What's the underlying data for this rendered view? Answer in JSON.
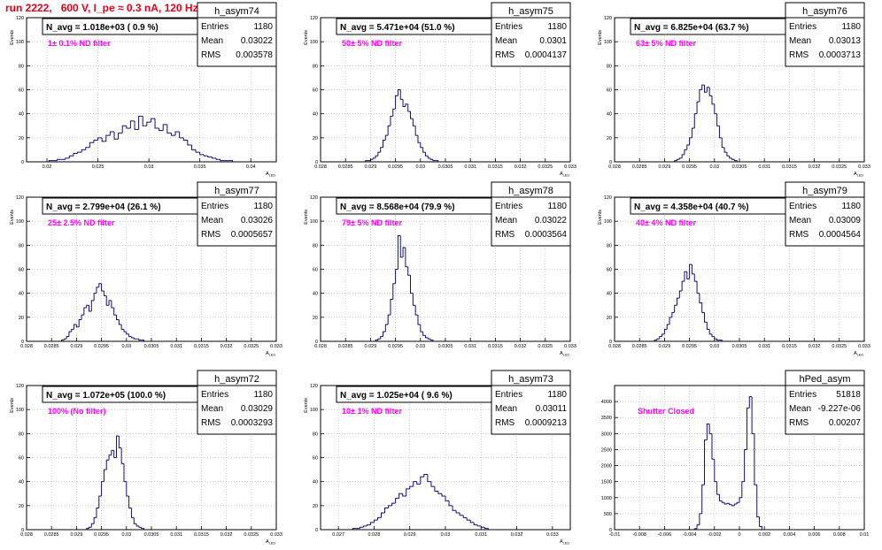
{
  "run_title": "run 2222,   600 V, I_pe ≈ 0.3 nA, 120 Hz",
  "colors": {
    "title": "#e8001a",
    "histogram": "#10107a",
    "annotation": "#ff00ff",
    "frame": "#000000",
    "grid": "#b0b0b0"
  },
  "chart_data": [
    {
      "type": "bar",
      "name": "h_asym74",
      "header": "N_avg = 1.018e+03 ( 0.9 %)",
      "annotation": "1± 0.1% ND filter",
      "stats": [
        [
          "Entries",
          "1180"
        ],
        [
          "Mean",
          "0.03022"
        ],
        [
          "RMS",
          "0.003578"
        ]
      ],
      "xlabel": "A_LED",
      "ylabel": "Events",
      "xlim": [
        0.018,
        0.0425
      ],
      "ylim": [
        0,
        120
      ],
      "xticks": [
        "0.02",
        "0.025",
        "0.03",
        "0.035",
        "0.04"
      ],
      "yticks": [
        "0",
        "20",
        "40",
        "60",
        "80",
        "100",
        "120"
      ],
      "grid": true,
      "legend": "top-right",
      "x_start": 0.0202,
      "bin_width": 0.0004,
      "values": [
        1,
        1,
        2,
        2,
        3,
        5,
        7,
        8,
        10,
        12,
        16,
        18,
        20,
        17,
        22,
        25,
        19,
        24,
        30,
        28,
        34,
        27,
        38,
        30,
        33,
        36,
        28,
        26,
        31,
        24,
        22,
        25,
        20,
        18,
        14,
        10,
        8,
        6,
        5,
        4,
        3,
        2,
        1,
        1,
        1
      ]
    },
    {
      "type": "bar",
      "name": "h_asym75",
      "header": "N_avg = 5.471e+04 (51.0 %)",
      "annotation": "50± 5% ND filter",
      "stats": [
        [
          "Entries",
          "1180"
        ],
        [
          "Mean",
          "0.0301"
        ],
        [
          "RMS",
          "0.0004137"
        ]
      ],
      "xlabel": "A_LED",
      "ylabel": "Events",
      "xlim": [
        0.028,
        0.033
      ],
      "ylim": [
        0,
        120
      ],
      "xticks": [
        "0.028",
        "0.0285",
        "0.029",
        "0.0295",
        "0.03",
        "0.0305",
        "0.031",
        "0.0315",
        "0.032",
        "0.0325",
        "0.033"
      ],
      "yticks": [
        "0",
        "20",
        "40",
        "60",
        "80",
        "100",
        "120"
      ],
      "grid": true,
      "legend": "top-right",
      "x_start": 0.0289,
      "bin_width": 5e-05,
      "values": [
        1,
        1,
        2,
        3,
        5,
        8,
        12,
        18,
        22,
        30,
        38,
        44,
        55,
        60,
        52,
        46,
        48,
        42,
        36,
        30,
        22,
        16,
        12,
        8,
        5,
        3,
        2,
        1,
        1
      ]
    },
    {
      "type": "bar",
      "name": "h_asym76",
      "header": "N_avg = 6.825e+04 (63.7 %)",
      "annotation": "63± 5% ND filter",
      "stats": [
        [
          "Entries",
          "1180"
        ],
        [
          "Mean",
          "0.03013"
        ],
        [
          "RMS",
          "0.0003713"
        ]
      ],
      "xlabel": "A_LED",
      "ylabel": "Events",
      "xlim": [
        0.028,
        0.033
      ],
      "ylim": [
        0,
        120
      ],
      "xticks": [
        "0.028",
        "0.0285",
        "0.029",
        "0.0295",
        "0.03",
        "0.0305",
        "0.031",
        "0.0315",
        "0.032",
        "0.0325",
        "0.033"
      ],
      "yticks": [
        "0",
        "20",
        "40",
        "60",
        "80",
        "100",
        "120"
      ],
      "grid": true,
      "legend": "top-right",
      "x_start": 0.0292,
      "bin_width": 5e-05,
      "values": [
        1,
        2,
        3,
        6,
        10,
        14,
        20,
        28,
        40,
        50,
        60,
        64,
        58,
        62,
        55,
        48,
        40,
        30,
        20,
        12,
        8,
        5,
        3,
        2,
        1
      ]
    },
    {
      "type": "bar",
      "name": "h_asym77",
      "header": "N_avg = 2.799e+04 (26.1 %)",
      "annotation": "25± 2.5% ND filter",
      "stats": [
        [
          "Entries",
          "1180"
        ],
        [
          "Mean",
          "0.03026"
        ],
        [
          "RMS",
          "0.0005657"
        ]
      ],
      "xlabel": "A_LED",
      "ylabel": "Events",
      "xlim": [
        0.028,
        0.033
      ],
      "ylim": [
        0,
        120
      ],
      "xticks": [
        "0.028",
        "0.0285",
        "0.029",
        "0.0295",
        "0.03",
        "0.0305",
        "0.031",
        "0.0315",
        "0.032",
        "0.0325",
        "0.033"
      ],
      "yticks": [
        "0",
        "20",
        "40",
        "60",
        "80",
        "100",
        "120"
      ],
      "grid": true,
      "legend": "top-right",
      "x_start": 0.0287,
      "bin_width": 5e-05,
      "values": [
        1,
        2,
        4,
        8,
        10,
        14,
        12,
        18,
        22,
        28,
        30,
        25,
        34,
        40,
        45,
        48,
        42,
        38,
        30,
        34,
        28,
        22,
        18,
        14,
        10,
        8,
        6,
        4,
        3,
        2,
        2,
        1,
        1
      ]
    },
    {
      "type": "bar",
      "name": "h_asym78",
      "header": "N_avg = 8.568e+04 (79.9 %)",
      "annotation": "79± 5% ND filter",
      "stats": [
        [
          "Entries",
          "1180"
        ],
        [
          "Mean",
          "0.03022"
        ],
        [
          "RMS",
          "0.0003564"
        ]
      ],
      "xlabel": "A_LED",
      "ylabel": "Events",
      "xlim": [
        0.028,
        0.033
      ],
      "ylim": [
        0,
        120
      ],
      "xticks": [
        "0.028",
        "0.0285",
        "0.029",
        "0.0295",
        "0.03",
        "0.0305",
        "0.031",
        "0.0315",
        "0.032",
        "0.0325",
        "0.033"
      ],
      "yticks": [
        "0",
        "20",
        "40",
        "60",
        "80",
        "100",
        "120"
      ],
      "grid": true,
      "legend": "top-right",
      "x_start": 0.0291,
      "bin_width": 5e-05,
      "values": [
        1,
        2,
        4,
        8,
        14,
        22,
        35,
        48,
        60,
        88,
        70,
        78,
        62,
        55,
        40,
        30,
        22,
        14,
        8,
        5,
        3,
        2,
        1
      ]
    },
    {
      "type": "bar",
      "name": "h_asym79",
      "header": "N_avg = 4.358e+04 (40.7 %)",
      "annotation": "40± 4% ND filter",
      "stats": [
        [
          "Entries",
          "1180"
        ],
        [
          "Mean",
          "0.03009"
        ],
        [
          "RMS",
          "0.0004564"
        ]
      ],
      "xlabel": "A_LED",
      "ylabel": "Events",
      "xlim": [
        0.028,
        0.033
      ],
      "ylim": [
        0,
        120
      ],
      "xticks": [
        "0.028",
        "0.0285",
        "0.029",
        "0.0295",
        "0.03",
        "0.0305",
        "0.031",
        "0.0315",
        "0.032",
        "0.0325",
        "0.033"
      ],
      "yticks": [
        "0",
        "20",
        "40",
        "60",
        "80",
        "100",
        "120"
      ],
      "grid": true,
      "legend": "top-right",
      "x_start": 0.0288,
      "bin_width": 5e-05,
      "values": [
        1,
        2,
        4,
        6,
        10,
        14,
        20,
        24,
        30,
        36,
        42,
        50,
        58,
        52,
        64,
        56,
        50,
        40,
        32,
        24,
        16,
        10,
        6,
        4,
        2,
        1,
        1
      ]
    },
    {
      "type": "bar",
      "name": "h_asym72",
      "header": "N_avg = 1.072e+05 (100.0 %)",
      "annotation": "100% (No filter)",
      "stats": [
        [
          "Entries",
          "1180"
        ],
        [
          "Mean",
          "0.03029"
        ],
        [
          "RMS",
          "0.0003293"
        ]
      ],
      "xlabel": "A_LED",
      "ylabel": "Events",
      "xlim": [
        0.028,
        0.033
      ],
      "ylim": [
        0,
        120
      ],
      "xticks": [
        "0.028",
        "0.0285",
        "0.029",
        "0.0295",
        "0.03",
        "0.0305",
        "0.031",
        "0.0315",
        "0.032",
        "0.0325",
        "0.033"
      ],
      "yticks": [
        "0",
        "20",
        "40",
        "60",
        "80",
        "100",
        "120"
      ],
      "grid": true,
      "legend": "top-right",
      "x_start": 0.0292,
      "bin_width": 5e-05,
      "values": [
        1,
        2,
        5,
        10,
        18,
        28,
        40,
        50,
        58,
        62,
        66,
        60,
        78,
        68,
        55,
        40,
        28,
        18,
        10,
        5,
        3,
        2,
        1
      ]
    },
    {
      "type": "bar",
      "name": "h_asym73",
      "header": "N_avg = 1.025e+04 ( 9.6 %)",
      "annotation": "10± 1% ND filter",
      "stats": [
        [
          "Entries",
          "1180"
        ],
        [
          "Mean",
          "0.03011"
        ],
        [
          "RMS",
          "0.0009213"
        ]
      ],
      "xlabel": "A_LED",
      "ylabel": "Events",
      "xlim": [
        0.0265,
        0.0335
      ],
      "ylim": [
        0,
        120
      ],
      "xticks": [
        "0.027",
        "0.028",
        "0.029",
        "0.03",
        "0.031",
        "0.032",
        "0.033"
      ],
      "yticks": [
        "0",
        "20",
        "40",
        "60",
        "80",
        "100",
        "120"
      ],
      "grid": true,
      "legend": "top-right",
      "x_start": 0.0274,
      "bin_width": 0.0001,
      "values": [
        1,
        1,
        2,
        3,
        4,
        6,
        8,
        10,
        14,
        18,
        20,
        22,
        26,
        30,
        28,
        34,
        36,
        40,
        38,
        44,
        46,
        40,
        36,
        32,
        30,
        28,
        24,
        20,
        16,
        14,
        12,
        10,
        8,
        6,
        4,
        3,
        2,
        1
      ]
    },
    {
      "type": "bar",
      "name": "hPed_asym",
      "header": "",
      "annotation": "Shutter Closed",
      "stats": [
        [
          "Entries",
          "51818"
        ],
        [
          "Mean",
          "-9.227e-06"
        ],
        [
          "RMS",
          "0.00207"
        ]
      ],
      "xlabel": "",
      "ylabel": "",
      "xlim": [
        -0.01,
        0.01
      ],
      "ylim": [
        0,
        4500
      ],
      "xticks": [
        "-0.01",
        "-0.008",
        "-0.006",
        "-0.004",
        "-0.002",
        "0",
        "0.002",
        "0.004",
        "0.006",
        "0.008",
        "0.01"
      ],
      "yticks": [
        "0",
        "500",
        "1000",
        "1500",
        "2000",
        "2500",
        "3000",
        "3500",
        "4000"
      ],
      "grid": true,
      "legend": "top-right",
      "x_start": -0.0036,
      "bin_width": 0.0002,
      "values": [
        30,
        150,
        500,
        1400,
        2800,
        3300,
        3000,
        2200,
        1500,
        1100,
        900,
        850,
        800,
        820,
        780,
        750,
        800,
        850,
        1000,
        1500,
        2500,
        3800,
        4150,
        3000,
        1400,
        400,
        100
      ]
    }
  ]
}
